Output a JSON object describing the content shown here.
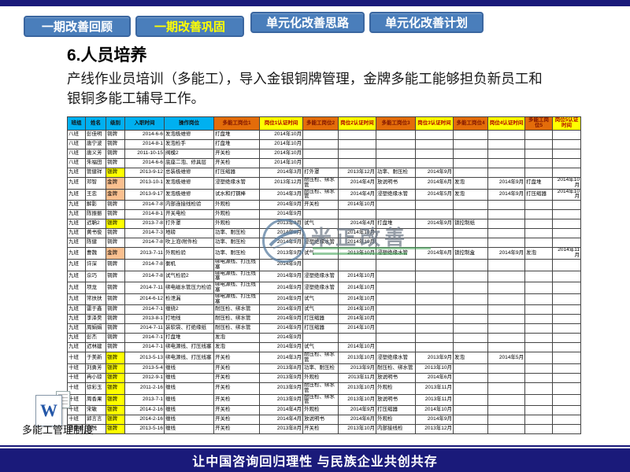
{
  "slide": {
    "tabs": [
      {
        "label": "一期改善回顾",
        "active": false
      },
      {
        "label": "一期改善巩固",
        "active": true
      },
      {
        "label": "单元化改善思路",
        "active": false
      },
      {
        "label": "单元化改善计划",
        "active": false
      }
    ],
    "title": "6.人员培养",
    "body_text": "产线作业员培训（多能工），导入金银铜牌管理，金牌多能工能够担负新员工和银铜多能工辅导工作。",
    "attachment": {
      "label": "多能工管理制度",
      "icon": "word-doc-icon"
    },
    "watermark_text": "米正改善",
    "footer": "让中国咨询回归理性 与民族企业共创共存"
  },
  "colors": {
    "navy_bar": "#1a1a7a",
    "tab_blue": "#4a7ebb",
    "tab_active_text": "#ffff00",
    "header_cyan": "#00b0f0",
    "header_orange": "#e36c0a",
    "header_yellow": "#ffff00",
    "gold_highlight": "#fac090",
    "silver_highlight": "#ffff00"
  },
  "table": {
    "headers": [
      "班组",
      "姓名",
      "级别",
      "入职时间",
      "操作岗位",
      "多能工岗位1",
      "岗位1认证时间",
      "多能工岗位2",
      "岗位2认证时间",
      "多能工岗位3",
      "岗位3认证时间",
      "多能工岗位4",
      "岗位4认证时间",
      "多能工岗位5",
      "岗位5认证时间"
    ],
    "level_highlight": {
      "金牌": "#fac090",
      "银牌": "#ffff00"
    },
    "rows": [
      [
        "八班",
        "彭佳明",
        "铜牌",
        "2014-6-6",
        "发泡极维修",
        "打盘堆",
        "2014年10月",
        "",
        "",
        "",
        "",
        "",
        "",
        "",
        ""
      ],
      [
        "八班",
        "唐宁波",
        "铜牌",
        "2014-8-1",
        "发泡检手",
        "打盘堆",
        "2014年10月",
        "",
        "",
        "",
        "",
        "",
        "",
        "",
        ""
      ],
      [
        "八班",
        "唐义芳",
        "铜牌",
        "2011-10-15",
        "阀模2",
        "开关检",
        "2014年10月",
        "",
        "",
        "",
        "",
        "",
        "",
        "",
        ""
      ],
      [
        "八班",
        "朱福田",
        "铜牌",
        "2014-6-6",
        "底座二泡、修具层",
        "开关检",
        "2014年10月",
        "",
        "",
        "",
        "",
        "",
        "",
        "",
        ""
      ],
      [
        "九班",
        "管健祥",
        "银牌",
        "2013-9-12",
        "总装极维修",
        "打压缩器",
        "2014年3月",
        "打外罩",
        "2013年12月",
        "功率、耐压检",
        "2014年9月",
        "",
        "",
        "",
        ""
      ],
      [
        "九班",
        "邓智",
        "金牌",
        "2013-10-1",
        "发泡极维修",
        "浸塑绝缘水管",
        "2013年12月",
        "耐压检、绑水管",
        "2014年4月",
        "放说明书",
        "2014年6月",
        "发泡",
        "2014年9月",
        "打盘堆",
        "2014年10月"
      ],
      [
        "九班",
        "王忠",
        "金牌",
        "2013-9-17",
        "发泡极维修",
        "试水和打钢棒",
        "2014年3月",
        "耐压检、绑水管",
        "2014年4月",
        "浸塑绝缘水管",
        "2014年5月",
        "发泡",
        "2014年9月",
        "打压缩器",
        "2014年10月"
      ],
      [
        "九班",
        "解影",
        "铜牌",
        "2014-7-8",
        "内部连接线检验",
        "外观检",
        "2014年9月",
        "开关检",
        "2014年10月",
        "",
        "",
        "",
        "",
        "",
        ""
      ],
      [
        "九班",
        "陈振振",
        "铜牌",
        "2014-8-1",
        "开关电检",
        "外观检",
        "2014年9月",
        "",
        "",
        "",
        "",
        "",
        "",
        "",
        ""
      ],
      [
        "九班",
        "迟聃2",
        "银牌",
        "2013-7-8",
        "打外罩",
        "外观检",
        "2013年9月",
        "试气",
        "2014年4月",
        "打盘堆",
        "2014年9月",
        "锁控制纸",
        "",
        "",
        ""
      ],
      [
        "九班",
        "黄书俊",
        "铜牌",
        "2014-7-3",
        "地磅",
        "功率、耐压检",
        "2014年9月",
        "",
        "2014年10月",
        "",
        "",
        "",
        "",
        "",
        ""
      ],
      [
        "九班",
        "陈健",
        "铜牌",
        "2014-7-8",
        "吹上泡\\附件检",
        "功率、耐压检",
        "2014年9月",
        "浸塑绝缘水管",
        "2014年10月",
        "",
        "",
        "",
        "",
        "",
        ""
      ],
      [
        "九班",
        "曹魏",
        "金牌",
        "2013-7-11",
        "外观检验",
        "功率、耐压检",
        "2013年9月",
        "试气",
        "2013年10月",
        "浸塑绝缘水管",
        "2014年6月",
        "锁控制盒",
        "2014年9月",
        "发泡",
        "2014年11月"
      ],
      [
        "九班",
        "许深",
        "铜牌",
        "2014-7-8",
        "衡机",
        "绑电源线、打压线塞",
        "2014年9月",
        "",
        "",
        "",
        "",
        "",
        "",
        "",
        ""
      ],
      [
        "九班",
        "佘巧",
        "铜牌",
        "2014-7-8",
        "试气检验2",
        "绑电源线、打压线塞",
        "2014年9月",
        "浸塑绝缘水管",
        "2014年10月",
        "",
        "",
        "",
        "",
        "",
        ""
      ],
      [
        "九班",
        "项龙",
        "铜牌",
        "2014-7-11",
        "绑电磁水管压力检验",
        "绑电源线、打压线塞",
        "2014年9月",
        "浸塑绝缘水管",
        "2014年10月",
        "",
        "",
        "",
        "",
        "",
        ""
      ],
      [
        "九班",
        "常扶扶",
        "铜牌",
        "2014-6-12",
        "检泄漏",
        "绑电源线、打压线塞",
        "2014年9月",
        "试气",
        "2014年10月",
        "",
        "",
        "",
        "",
        "",
        ""
      ],
      [
        "九班",
        "雷于鑫",
        "铜牌",
        "2014-7-1",
        "缠绕2",
        "耐压检、绑水管",
        "2014年9月",
        "试气",
        "2014年10月",
        "",
        "",
        "",
        "",
        "",
        ""
      ],
      [
        "九班",
        "李泽昊",
        "铜牌",
        "2013-8-1",
        "打地线",
        "耐压检、绑水管",
        "2014年9月",
        "打压缩器",
        "2014年10月",
        "",
        "",
        "",
        "",
        "",
        ""
      ],
      [
        "九班",
        "周娟娟",
        "铜牌",
        "2014-7-11",
        "装软袋、打绝缘纸",
        "耐压检、绑水管",
        "2014年9月",
        "打压缩器",
        "2014年10月",
        "",
        "",
        "",
        "",
        "",
        ""
      ],
      [
        "九班",
        "彭杰",
        "铜牌",
        "2014-7-1",
        "打盘堆",
        "发泡",
        "2014年9月",
        "",
        "",
        "",
        "",
        "",
        "",
        "",
        ""
      ],
      [
        "九班",
        "迟林建",
        "铜牌",
        "2014-7-1",
        "绑电源线、打压线塞",
        "发泡",
        "2014年9月",
        "试气",
        "2014年10月",
        "",
        "",
        "",
        "",
        "",
        ""
      ],
      [
        "十班",
        "于美新",
        "银牌",
        "2013-5-13",
        "绑电源线、打压线塞",
        "开关检",
        "2014年3月",
        "耐压检、绑水管",
        "2013年10月",
        "浸塑绝缘水管",
        "2013年9月",
        "发泡",
        "2014年5月",
        "",
        ""
      ],
      [
        "十班",
        "刘勇芳",
        "银牌",
        "2013-5-4",
        "缠线",
        "开关检",
        "2013年8月",
        "功率、耐压检",
        "2013年9月",
        "耐压检、绑水管",
        "2013年10月",
        "",
        "",
        "",
        ""
      ],
      [
        "十班",
        "冉小琼",
        "银牌",
        "2012-9-1",
        "缠线",
        "开关检",
        "2013年9月",
        "外观检",
        "2013年11月",
        "放说明书",
        "2014年6月",
        "",
        "",
        "",
        ""
      ],
      [
        "十班",
        "徐彩玉",
        "银牌",
        "2011-2-16",
        "缠线",
        "开关检",
        "2013年9月",
        "耐压检、绑水管",
        "2013年10月",
        "外观检",
        "2013年11月",
        "",
        "",
        "",
        ""
      ],
      [
        "十班",
        "周香果",
        "银牌",
        "2013-7-1",
        "缠线",
        "开关检",
        "2013年9月",
        "耐压检、绑水管",
        "2013年10月",
        "放说明书",
        "2013年11月",
        "",
        "",
        "",
        ""
      ],
      [
        "十班",
        "宋敏",
        "银牌",
        "2014-2-16",
        "缠线",
        "开关检",
        "2014年4月",
        "外观检",
        "2014年9月",
        "打压缩器",
        "2014年10月",
        "",
        "",
        "",
        ""
      ],
      [
        "十班",
        "郭言言",
        "银牌",
        "2014-2-16",
        "缠线",
        "开关检",
        "2014年4月",
        "放说明书",
        "2014年6月",
        "外观检",
        "2014年9月",
        "",
        "",
        "",
        ""
      ],
      [
        "成配班",
        "张悦",
        "银牌",
        "2013-5-16",
        "缠线",
        "开关检",
        "2013年8月",
        "开关检",
        "2013年10月",
        "内部接线检",
        "2013年12月",
        "",
        "",
        "",
        ""
      ]
    ]
  }
}
